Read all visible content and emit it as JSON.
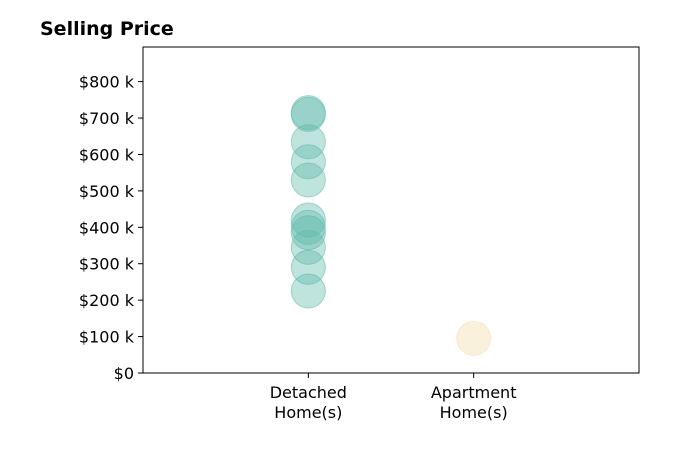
{
  "chart_data": {
    "type": "scatter",
    "title": "Selling Price",
    "xlabel": "",
    "ylabel": "",
    "categories": [
      [
        "Detached",
        "Home(s)"
      ],
      [
        "Apartment",
        "Home(s)"
      ]
    ],
    "yticks": [
      0,
      100,
      200,
      300,
      400,
      500,
      600,
      700,
      800
    ],
    "ytick_labels": [
      "$0",
      "$100 k",
      "$200 k",
      "$300 k",
      "$400 k",
      "$500 k",
      "$600 k",
      "$700 k",
      "$800 k"
    ],
    "ylim": [
      0,
      895
    ],
    "xlim": [
      -1,
      2
    ],
    "grid": false,
    "series": [
      {
        "category_index": 0,
        "color": "#5fb8aa",
        "values": [
          710,
          715,
          635,
          580,
          530,
          420,
          400,
          385,
          345,
          290,
          225
        ]
      },
      {
        "category_index": 1,
        "color": "#f2dbab",
        "values": [
          95
        ]
      }
    ]
  }
}
